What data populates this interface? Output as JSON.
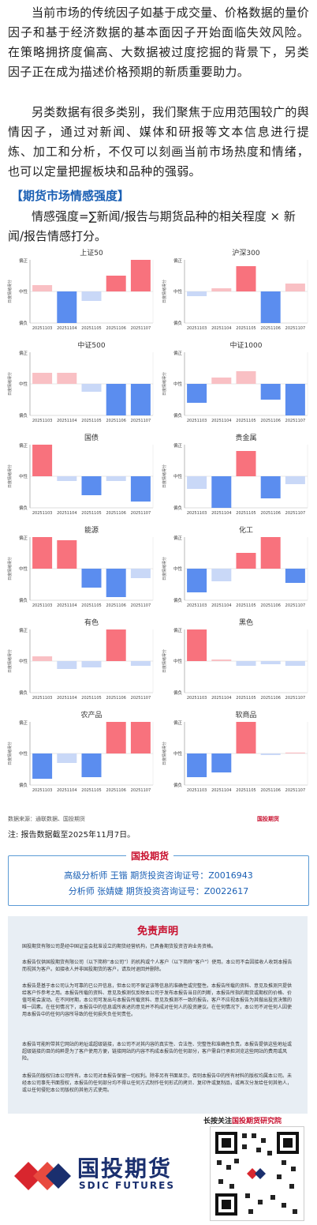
{
  "intro": {
    "p1": "当前市场的传统因子如基于成交量、价格数据的量价因子和基于经济数据的基本面因子开始面临失效风险。在策略拥挤度偏高、大数据被过度挖掘的背景下，另类因子正在成为描述价格预期的新质重要助力。",
    "p2": "另类数据有很多类别，我们聚焦于应用范围较广的舆情因子，通过对新闻、媒体和研报等文本信息进行提炼、加工和分析，不仅可以刻画当前市场热度和情绪，也可以定量把握板块和品种的强弱。"
  },
  "section_title": "【期货市场情感强度】",
  "formula": "情感强度=∑新闻/报告与期货品种的相关程度 × 新闻/报告情感打分。",
  "axis": {
    "top": "偏正",
    "mid": "中性",
    "bottom": "偏负",
    "ylabel": "日度情绪得分"
  },
  "colors": {
    "pos_strong": "#f8727d",
    "pos_light": "#f9c0c4",
    "neg_strong": "#5b8def",
    "neg_light": "#c9d8f7"
  },
  "chart_data": [
    {
      "type": "bar",
      "title": "上证50",
      "categories": [
        "20251103",
        "20251104",
        "20251105",
        "20251106",
        "20251107"
      ],
      "values": [
        0.2,
        -1.0,
        -0.3,
        0.5,
        1.0
      ],
      "ylim": [
        -1,
        1
      ]
    },
    {
      "type": "bar",
      "title": "沪深300",
      "categories": [
        "20251103",
        "20251104",
        "20251105",
        "20251106",
        "20251107"
      ],
      "values": [
        -0.15,
        0.1,
        0.8,
        -1.0,
        0.25
      ],
      "ylim": [
        -1,
        1
      ]
    },
    {
      "type": "bar",
      "title": "中证500",
      "categories": [
        "20251103",
        "20251104",
        "20251105",
        "20251106",
        "20251107"
      ],
      "values": [
        0.35,
        0.35,
        -0.25,
        -1.0,
        -1.0
      ],
      "ylim": [
        -1,
        1
      ]
    },
    {
      "type": "bar",
      "title": "中证1000",
      "categories": [
        "20251103",
        "20251104",
        "20251105",
        "20251106",
        "20251107"
      ],
      "values": [
        -0.6,
        0.2,
        0.4,
        -0.5,
        -1.0
      ],
      "ylim": [
        -1,
        1
      ]
    },
    {
      "type": "bar",
      "title": "国债",
      "categories": [
        "20251103",
        "20251104",
        "20251105",
        "20251106",
        "20251107"
      ],
      "values": [
        1.0,
        -0.15,
        -0.6,
        -0.15,
        -0.8
      ],
      "ylim": [
        -1,
        1
      ]
    },
    {
      "type": "bar",
      "title": "贵金属",
      "categories": [
        "20251103",
        "20251104",
        "20251105",
        "20251106",
        "20251107"
      ],
      "values": [
        -0.4,
        -1.0,
        0.8,
        -0.7,
        -0.25
      ],
      "ylim": [
        -1,
        1
      ]
    },
    {
      "type": "bar",
      "title": "能源",
      "categories": [
        "20251103",
        "20251104",
        "20251105",
        "20251106",
        "20251107"
      ],
      "values": [
        1.0,
        0.9,
        -0.6,
        -0.9,
        -0.3
      ],
      "ylim": [
        -1,
        1
      ]
    },
    {
      "type": "bar",
      "title": "化工",
      "categories": [
        "20251103",
        "20251104",
        "20251105",
        "20251106",
        "20251107"
      ],
      "values": [
        -0.75,
        -0.4,
        0.5,
        1.0,
        -0.45
      ],
      "ylim": [
        -1,
        1
      ]
    },
    {
      "type": "bar",
      "title": "有色",
      "categories": [
        "20251103",
        "20251104",
        "20251105",
        "20251106",
        "20251107"
      ],
      "values": [
        0.15,
        -0.25,
        -0.2,
        1.0,
        -0.15
      ],
      "ylim": [
        -1,
        1
      ]
    },
    {
      "type": "bar",
      "title": "黑色",
      "categories": [
        "20251103",
        "20251104",
        "20251105",
        "20251106",
        "20251107"
      ],
      "values": [
        1.0,
        0.05,
        -0.15,
        -0.1,
        -0.15
      ],
      "ylim": [
        -1,
        1
      ]
    },
    {
      "type": "bar",
      "title": "农产品",
      "categories": [
        "20251103",
        "20251104",
        "20251105",
        "20251106",
        "20251107"
      ],
      "values": [
        -0.8,
        -0.3,
        -0.75,
        1.0,
        1.0
      ],
      "ylim": [
        -1,
        1
      ]
    },
    {
      "type": "bar",
      "title": "软商品",
      "categories": [
        "20251103",
        "20251104",
        "20251105",
        "20251106",
        "20251107"
      ],
      "values": [
        -0.75,
        -0.6,
        1.0,
        -0.05,
        0.03
      ],
      "ylim": [
        -1,
        1
      ]
    }
  ],
  "source": "数据来源：通联数据、国投期货",
  "source_logo": "国投期货",
  "note": "注: 报告数据截至2025年11月7日。",
  "analysts": {
    "brand": "国投期货",
    "line1": "高级分析师  王锴  期货投资咨询证号：Z0016943",
    "line2": "分析师  张婧婕  期货投资咨询证号：Z0022617"
  },
  "disclaimer": {
    "title": "免责声明",
    "p1": "国投期货有限公司是经中国证监会批准设立的期货经营机构，已具备期货投资咨询业务资格。",
    "p2": "本报告仅供国投期货有限公司（以下简称“本公司”）的机构或个人客户（以下简称“客户”）使用。本公司不会因接收人收到本报告而视其为客户。如接收人并非国投期货的客户，请及时退回并删除。",
    "p3": "本报告是基于本公司认为可靠的已公开信息，但本公司不保证该等信息的准确性或完整性。本报告所载的资料、意见及推测只提供给客户作参考之用。本报告所载的资料、意见及推测仅反映本公司于发布本报告当日的判断，本报告所指的期货或期权的价格、价值可能会波动。在不同时期，本公司可发出与本报告所载资料、意见及推测不一致的报告。客户不应视本报告为其做出投资决策的唯一因素。在任何情况下，本报告中的信息或所表述的意见并不构成对任何人的投资建议。在任何情况下，本公司不对任何人因使用本报告中的任何内容所导致的任何损失负任何责任。",
    "p4": "本报告可能附带其它网站的地址或超级链接，本公司不对其内容的真实性、合法性、完整性和准确性负责。本报告提供这些地址或超级链接的目的纯粹是为了客户使用方便，链接网站的内容不构成本报告的任何部分，客户需自行承担浏览这些网站的费用或风险。",
    "p5": "本报告的版权归本公司所有。本公司对本报告保留一切权利。除非另有书面显示，否则本报告中的所有材料的版权均属本公司。未经本公司事先书面授权，本报告的任何部分均不得以任何方式制作任何形式的拷贝、复印件或复制品，或再次分发给任何其他人，或以任何侵犯本公司版权的其他方式使用。"
  },
  "footer": {
    "follow_prefix": "长按关注",
    "follow_brand": "国投期货研究院",
    "brand_cn": "国投期货",
    "brand_en": "SDIC FUTURES"
  }
}
